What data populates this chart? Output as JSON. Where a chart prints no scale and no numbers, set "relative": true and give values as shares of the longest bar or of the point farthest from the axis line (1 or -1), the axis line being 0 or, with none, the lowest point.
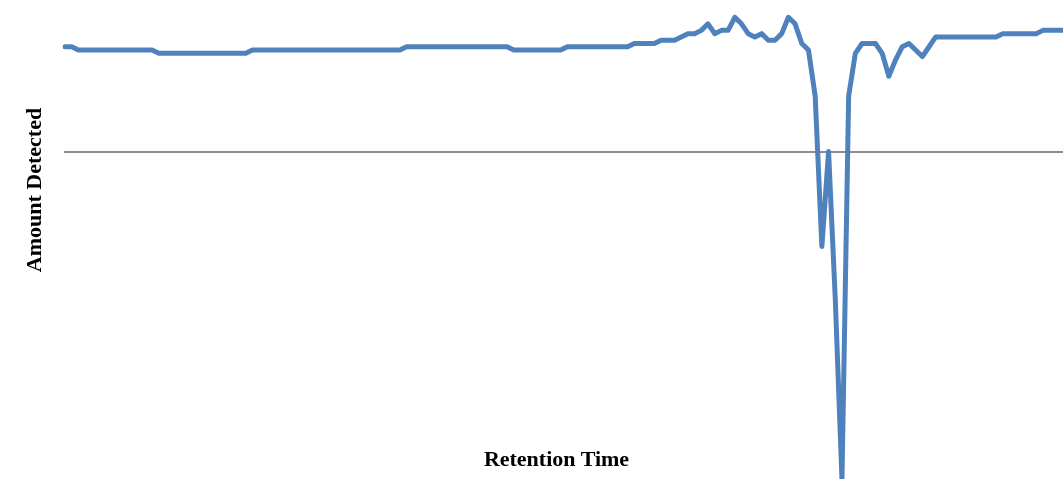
{
  "chart_data": {
    "type": "line",
    "xlabel": "Retention Time",
    "ylabel": "Amount Detected",
    "relative": true,
    "legend": false,
    "grid": false,
    "marker": "none",
    "line_style": "solid",
    "categories": [
      null,
      null,
      null,
      null,
      null,
      null,
      null,
      null,
      null,
      null,
      null,
      null,
      null,
      null,
      null,
      null,
      null,
      null,
      null,
      null,
      null,
      null,
      null,
      null,
      null,
      null,
      null,
      null,
      null,
      null,
      null,
      null,
      null,
      null,
      null,
      null,
      null,
      null,
      null,
      null,
      null,
      null,
      null,
      null,
      null,
      null,
      null,
      null,
      null,
      null,
      null,
      null,
      null,
      null,
      null,
      null,
      null,
      null,
      null,
      null,
      null,
      null,
      null,
      null,
      null,
      null,
      null,
      null,
      null,
      null,
      null,
      null,
      null,
      null,
      null,
      null,
      null,
      null,
      null,
      null,
      null,
      null,
      null,
      null,
      null,
      null,
      null,
      null,
      null,
      null,
      null,
      null,
      null,
      null,
      null,
      null,
      null,
      null,
      null,
      null,
      null,
      null,
      null,
      null,
      null,
      null,
      null,
      null,
      null,
      null,
      null,
      null,
      null,
      null,
      null,
      null,
      null,
      null,
      null,
      null,
      null,
      null,
      null,
      null,
      null,
      null,
      null,
      null,
      null,
      null,
      null,
      null,
      null,
      null,
      null,
      null,
      null,
      null,
      null,
      null,
      null,
      null,
      null,
      null,
      null,
      null,
      null,
      null,
      null,
      null
    ],
    "series": [
      {
        "color": "#4f81bd",
        "values": [
          0.32,
          0.32,
          0.31,
          0.31,
          0.31,
          0.31,
          0.31,
          0.31,
          0.31,
          0.31,
          0.31,
          0.31,
          0.31,
          0.31,
          0.3,
          0.3,
          0.3,
          0.3,
          0.3,
          0.3,
          0.3,
          0.3,
          0.3,
          0.3,
          0.3,
          0.3,
          0.3,
          0.3,
          0.31,
          0.31,
          0.31,
          0.31,
          0.31,
          0.31,
          0.31,
          0.31,
          0.31,
          0.31,
          0.31,
          0.31,
          0.31,
          0.31,
          0.31,
          0.31,
          0.31,
          0.31,
          0.31,
          0.31,
          0.31,
          0.31,
          0.31,
          0.32,
          0.32,
          0.32,
          0.32,
          0.32,
          0.32,
          0.32,
          0.32,
          0.32,
          0.32,
          0.32,
          0.32,
          0.32,
          0.32,
          0.32,
          0.32,
          0.31,
          0.31,
          0.31,
          0.31,
          0.31,
          0.31,
          0.31,
          0.31,
          0.32,
          0.32,
          0.32,
          0.32,
          0.32,
          0.32,
          0.32,
          0.32,
          0.32,
          0.32,
          0.33,
          0.33,
          0.33,
          0.33,
          0.34,
          0.34,
          0.34,
          0.35,
          0.36,
          0.36,
          0.37,
          0.39,
          0.36,
          0.37,
          0.37,
          0.41,
          0.39,
          0.36,
          0.35,
          0.36,
          0.34,
          0.34,
          0.36,
          0.41,
          0.39,
          0.33,
          0.31,
          0.17,
          -0.29,
          0.0,
          -0.45,
          -1,
          0.17,
          0.3,
          0.33,
          0.33,
          0.33,
          0.3,
          0.23,
          0.28,
          0.32,
          0.33,
          0.31,
          0.29,
          0.32,
          0.35,
          0.35,
          0.35,
          0.35,
          0.35,
          0.35,
          0.35,
          0.35,
          0.35,
          0.35,
          0.36,
          0.36,
          0.36,
          0.36,
          0.36,
          0.36,
          0.37,
          0.37,
          0.37,
          0.37
        ]
      }
    ]
  }
}
